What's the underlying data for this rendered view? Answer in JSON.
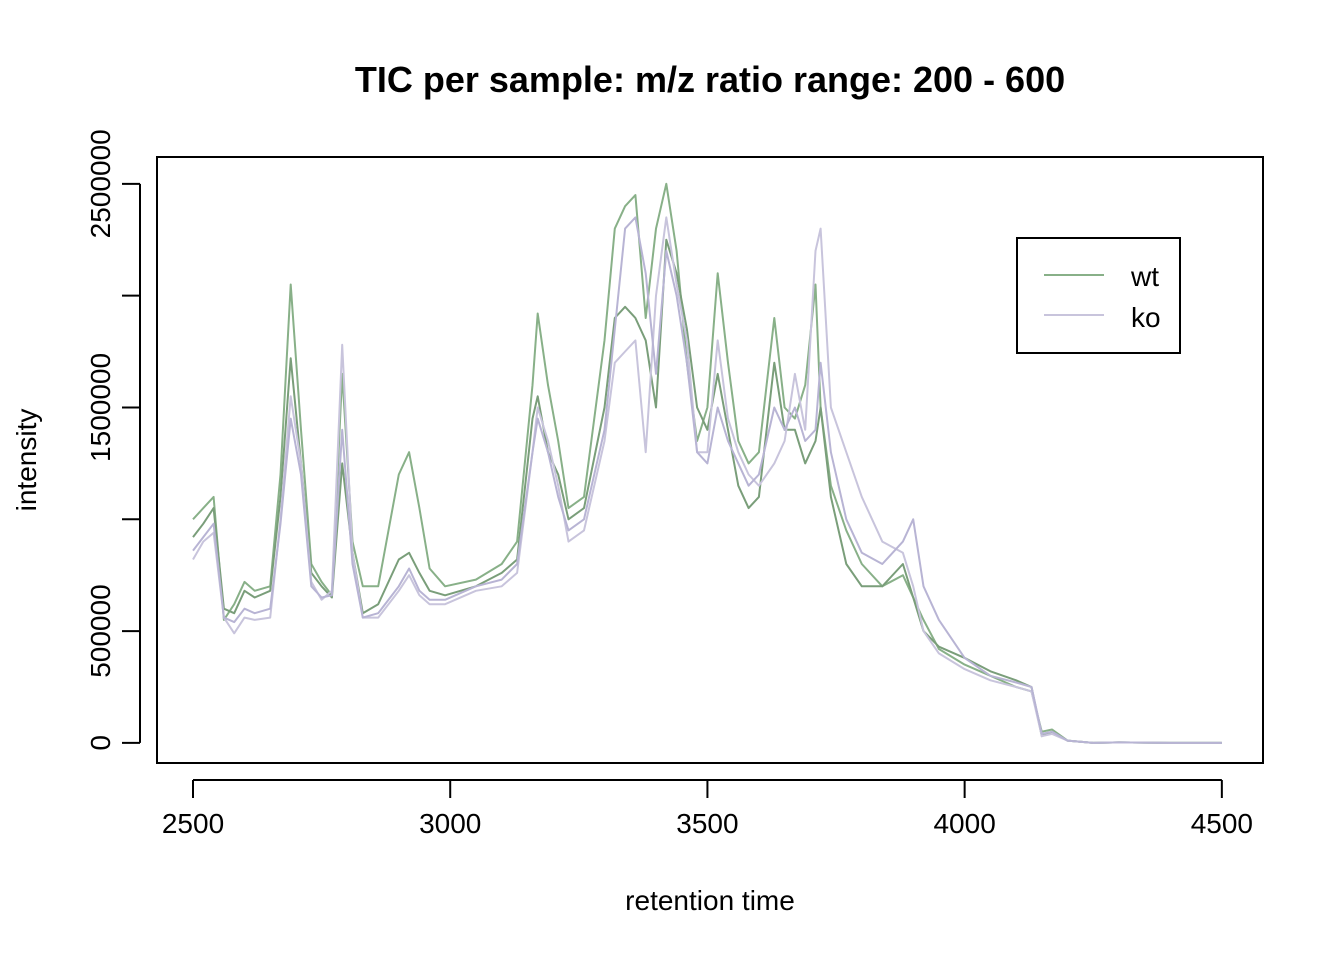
{
  "chart_data": {
    "type": "line",
    "title": "TIC per sample: m/z ratio range: 200 - 600",
    "xlabel": "retention time",
    "ylabel": "intensity",
    "xlim": [
      2430,
      4580
    ],
    "ylim": [
      -90000,
      2620000
    ],
    "x_ticks": [
      "2500",
      "3000",
      "3500",
      "4000",
      "4500"
    ],
    "x_tick_values": [
      2500,
      3000,
      3500,
      4000,
      4500
    ],
    "y_ticks": [
      "0",
      "500000",
      "1500000",
      "2500000"
    ],
    "y_tick_values": [
      0,
      500000,
      1500000,
      2500000
    ],
    "y_tick_marks": [
      0,
      500000,
      1000000,
      1500000,
      2000000,
      2500000
    ],
    "legend": {
      "position": "top-right",
      "entries": [
        "wt",
        "ko"
      ]
    },
    "colors": {
      "wt": "#88b088",
      "ko": "#c8c4dc",
      "wt2": "#7a9e7a",
      "ko2": "#b8b4d4"
    },
    "series": [
      {
        "name": "wt",
        "group": "wt",
        "x": [
          2500,
          2520,
          2540,
          2560,
          2580,
          2600,
          2620,
          2650,
          2670,
          2690,
          2710,
          2730,
          2750,
          2770,
          2790,
          2810,
          2830,
          2860,
          2900,
          2920,
          2940,
          2960,
          2990,
          3050,
          3100,
          3130,
          3160,
          3170,
          3190,
          3210,
          3230,
          3260,
          3300,
          3320,
          3340,
          3360,
          3380,
          3400,
          3420,
          3440,
          3460,
          3480,
          3500,
          3520,
          3540,
          3560,
          3580,
          3600,
          3630,
          3650,
          3670,
          3690,
          3710,
          3720,
          3740,
          3770,
          3800,
          3840,
          3880,
          3900,
          3920,
          3950,
          4000,
          4050,
          4100,
          4130,
          4150,
          4170,
          4200,
          4250,
          4300,
          4400,
          4500
        ],
        "y": [
          1000000,
          1050000,
          1100000,
          550000,
          620000,
          720000,
          680000,
          700000,
          1200000,
          2050000,
          1400000,
          800000,
          720000,
          660000,
          1650000,
          900000,
          700000,
          700000,
          1200000,
          1300000,
          1050000,
          780000,
          700000,
          730000,
          800000,
          900000,
          1600000,
          1920000,
          1600000,
          1350000,
          1050000,
          1100000,
          1800000,
          2300000,
          2400000,
          2450000,
          1900000,
          2300000,
          2500000,
          2200000,
          1700000,
          1350000,
          1500000,
          2100000,
          1700000,
          1350000,
          1250000,
          1300000,
          1900000,
          1500000,
          1450000,
          1600000,
          2050000,
          1500000,
          1150000,
          950000,
          800000,
          700000,
          750000,
          650000,
          550000,
          420000,
          350000,
          300000,
          250000,
          230000,
          50000,
          60000,
          10000,
          0,
          2000,
          0,
          0
        ]
      },
      {
        "name": "",
        "group": "wt",
        "x": [
          2500,
          2520,
          2540,
          2560,
          2580,
          2600,
          2620,
          2650,
          2670,
          2690,
          2710,
          2730,
          2750,
          2770,
          2790,
          2810,
          2830,
          2860,
          2900,
          2920,
          2940,
          2960,
          2990,
          3050,
          3100,
          3130,
          3160,
          3170,
          3190,
          3210,
          3230,
          3260,
          3300,
          3320,
          3340,
          3360,
          3380,
          3400,
          3420,
          3440,
          3460,
          3480,
          3500,
          3520,
          3540,
          3560,
          3580,
          3600,
          3630,
          3650,
          3670,
          3690,
          3710,
          3720,
          3740,
          3770,
          3800,
          3840,
          3880,
          3900,
          3920,
          3950,
          4000,
          4050,
          4100,
          4130,
          4150,
          4170,
          4200,
          4250,
          4300,
          4400,
          4500
        ],
        "y": [
          920000,
          980000,
          1050000,
          600000,
          580000,
          680000,
          650000,
          680000,
          1100000,
          1720000,
          1250000,
          760000,
          700000,
          650000,
          1250000,
          850000,
          580000,
          620000,
          820000,
          850000,
          760000,
          680000,
          660000,
          700000,
          760000,
          820000,
          1450000,
          1550000,
          1300000,
          1200000,
          1000000,
          1050000,
          1500000,
          1900000,
          1950000,
          1900000,
          1800000,
          1500000,
          2250000,
          2100000,
          1850000,
          1500000,
          1400000,
          1650000,
          1400000,
          1150000,
          1050000,
          1100000,
          1700000,
          1400000,
          1400000,
          1250000,
          1350000,
          1500000,
          1100000,
          800000,
          700000,
          700000,
          800000,
          650000,
          500000,
          430000,
          380000,
          320000,
          280000,
          250000,
          30000,
          50000,
          10000,
          0,
          2000,
          0,
          0
        ]
      },
      {
        "name": "ko",
        "group": "ko",
        "x": [
          2500,
          2520,
          2540,
          2560,
          2580,
          2600,
          2620,
          2650,
          2670,
          2690,
          2710,
          2730,
          2750,
          2770,
          2790,
          2810,
          2830,
          2860,
          2900,
          2920,
          2940,
          2960,
          2990,
          3050,
          3100,
          3130,
          3160,
          3170,
          3190,
          3210,
          3230,
          3260,
          3300,
          3320,
          3340,
          3360,
          3380,
          3400,
          3420,
          3440,
          3460,
          3480,
          3500,
          3520,
          3540,
          3560,
          3580,
          3600,
          3630,
          3650,
          3670,
          3690,
          3710,
          3720,
          3740,
          3770,
          3800,
          3840,
          3880,
          3900,
          3920,
          3950,
          4000,
          4050,
          4100,
          4130,
          4150,
          4170,
          4200,
          4250,
          4300,
          4400,
          4500
        ],
        "y": [
          820000,
          900000,
          940000,
          560000,
          490000,
          560000,
          550000,
          560000,
          1000000,
          1550000,
          1250000,
          720000,
          640000,
          680000,
          1780000,
          850000,
          560000,
          560000,
          680000,
          750000,
          660000,
          620000,
          620000,
          680000,
          700000,
          760000,
          1300000,
          1500000,
          1350000,
          1150000,
          900000,
          950000,
          1350000,
          1700000,
          1750000,
          1800000,
          1300000,
          2000000,
          2350000,
          2050000,
          1800000,
          1300000,
          1300000,
          1800000,
          1450000,
          1300000,
          1200000,
          1150000,
          1250000,
          1350000,
          1650000,
          1400000,
          2200000,
          2300000,
          1500000,
          1300000,
          1100000,
          900000,
          850000,
          700000,
          500000,
          400000,
          330000,
          280000,
          250000,
          230000,
          30000,
          40000,
          10000,
          0,
          2000,
          0,
          0
        ]
      },
      {
        "name": "",
        "group": "ko",
        "x": [
          2500,
          2520,
          2540,
          2560,
          2580,
          2600,
          2620,
          2650,
          2670,
          2690,
          2710,
          2730,
          2750,
          2770,
          2790,
          2810,
          2830,
          2860,
          2900,
          2920,
          2940,
          2960,
          2990,
          3050,
          3100,
          3130,
          3160,
          3170,
          3190,
          3210,
          3230,
          3260,
          3300,
          3320,
          3340,
          3360,
          3380,
          3400,
          3420,
          3440,
          3460,
          3480,
          3500,
          3520,
          3540,
          3560,
          3580,
          3600,
          3630,
          3650,
          3670,
          3690,
          3710,
          3720,
          3740,
          3770,
          3800,
          3840,
          3880,
          3900,
          3920,
          3950,
          4000,
          4050,
          4100,
          4130,
          4150,
          4170,
          4200,
          4250,
          4300,
          4400,
          4500
        ],
        "y": [
          860000,
          920000,
          980000,
          560000,
          540000,
          600000,
          580000,
          600000,
          980000,
          1450000,
          1200000,
          700000,
          650000,
          660000,
          1400000,
          800000,
          560000,
          580000,
          700000,
          780000,
          680000,
          640000,
          640000,
          700000,
          730000,
          800000,
          1300000,
          1450000,
          1300000,
          1100000,
          950000,
          1000000,
          1400000,
          1850000,
          2300000,
          2350000,
          2100000,
          1650000,
          2200000,
          2000000,
          1700000,
          1300000,
          1250000,
          1500000,
          1350000,
          1250000,
          1150000,
          1200000,
          1500000,
          1400000,
          1500000,
          1350000,
          1400000,
          1700000,
          1300000,
          1000000,
          850000,
          800000,
          900000,
          1000000,
          700000,
          550000,
          380000,
          300000,
          270000,
          250000,
          40000,
          50000,
          10000,
          0,
          2000,
          0,
          0
        ]
      }
    ]
  }
}
